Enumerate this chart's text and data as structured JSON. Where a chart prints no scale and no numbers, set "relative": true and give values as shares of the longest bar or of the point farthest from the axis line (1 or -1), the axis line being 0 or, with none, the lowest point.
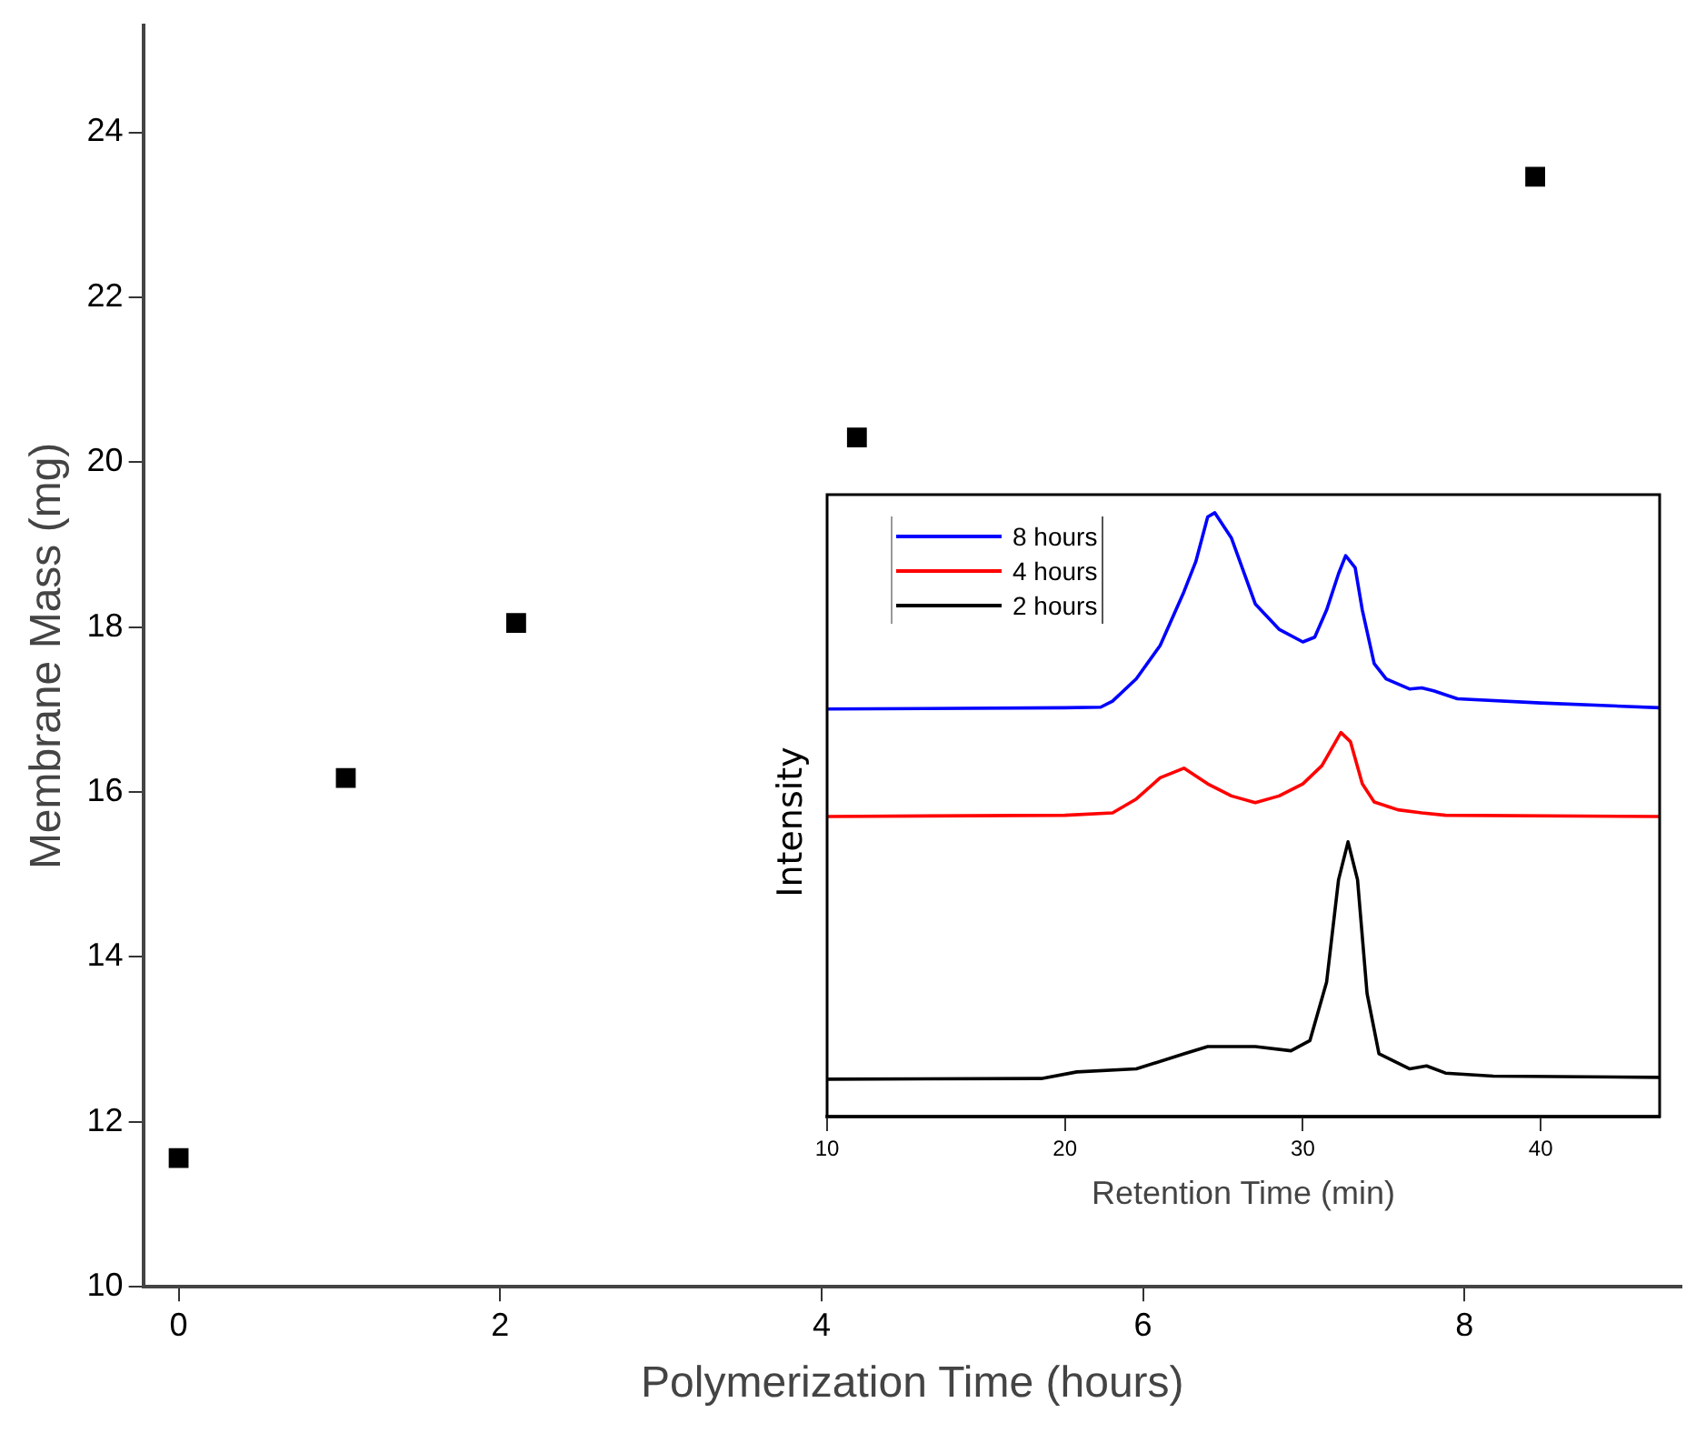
{
  "chart_data": [
    {
      "type": "scatter",
      "xlabel": "Polymerization Time (hours)",
      "ylabel": "Membrane Mass (mg)",
      "x": [
        0,
        1.04,
        2.1,
        4.22,
        8.44
      ],
      "values": [
        11.56,
        16.17,
        18.05,
        20.3,
        23.46
      ],
      "color": "#000000",
      "marker": "square",
      "xlim": [
        -0.22,
        9.35
      ],
      "xticks": [
        0,
        2,
        4,
        6,
        8
      ],
      "ylim": [
        10,
        25.3
      ],
      "yticks": [
        10,
        12,
        14,
        16,
        18,
        20,
        22,
        24
      ],
      "grid": false
    },
    {
      "type": "line",
      "xlabel": "Retention Time (min)",
      "ylabel": "Intensity",
      "relative": true,
      "xlim": [
        10,
        45
      ],
      "xticks": [
        10,
        20,
        30,
        40
      ],
      "grid": false,
      "legend": "top left",
      "series": [
        {
          "name": "8 hours",
          "color": "#0000ff",
          "x": [
            10,
            20,
            21.5,
            22,
            23,
            24,
            25,
            25.5,
            26,
            26.3,
            27,
            28,
            29,
            30,
            30.5,
            31,
            31.5,
            31.8,
            32.2,
            32.5,
            33,
            33.5,
            34.5,
            35,
            35.5,
            36.5,
            40,
            45
          ],
          "values": [
            0.675,
            0.677,
            0.678,
            0.688,
            0.725,
            0.78,
            0.869,
            0.919,
            0.993,
            1,
            0.958,
            0.849,
            0.807,
            0.786,
            0.794,
            0.839,
            0.899,
            0.929,
            0.909,
            0.839,
            0.75,
            0.725,
            0.708,
            0.71,
            0.705,
            0.692,
            0.685,
            0.677
          ]
        },
        {
          "name": "4 hours",
          "color": "#ff0000",
          "x": [
            10,
            20,
            22,
            23,
            24,
            25,
            26,
            27,
            28,
            29,
            30,
            30.8,
            31.6,
            32,
            32.5,
            33,
            34,
            35,
            36,
            45
          ],
          "values": [
            0.497,
            0.499,
            0.503,
            0.526,
            0.561,
            0.577,
            0.551,
            0.531,
            0.52,
            0.531,
            0.551,
            0.581,
            0.636,
            0.621,
            0.551,
            0.521,
            0.508,
            0.503,
            0.499,
            0.497
          ]
        },
        {
          "name": "2 hours",
          "color": "#000000",
          "x": [
            10,
            19,
            20.5,
            23,
            25,
            26,
            28,
            29.5,
            30.3,
            31,
            31.5,
            31.9,
            32.3,
            32.7,
            33.2,
            34.5,
            35.2,
            36,
            38,
            45
          ],
          "values": [
            0.062,
            0.063,
            0.074,
            0.079,
            0.104,
            0.116,
            0.116,
            0.109,
            0.126,
            0.223,
            0.392,
            0.455,
            0.392,
            0.204,
            0.104,
            0.079,
            0.084,
            0.072,
            0.067,
            0.065
          ]
        }
      ]
    }
  ]
}
